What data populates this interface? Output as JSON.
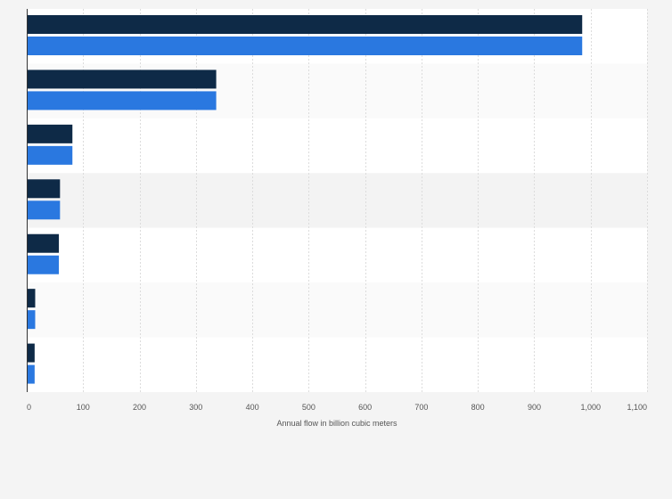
{
  "chart_data": {
    "type": "bar",
    "orientation": "horizontal",
    "xlabel": "Annual flow in billion cubic meters",
    "xlim": [
      0,
      1100
    ],
    "xticks": [
      0,
      100,
      200,
      300,
      400,
      500,
      600,
      700,
      800,
      900,
      1000,
      1100
    ],
    "xtick_labels": [
      "0",
      "100",
      "200",
      "300",
      "400",
      "500",
      "600",
      "700",
      "800",
      "900",
      "1,000",
      "1,100"
    ],
    "categories": [
      "",
      "",
      "",
      "",
      "",
      "",
      ""
    ],
    "series": [
      {
        "color": "#0e2a47",
        "values": [
          985,
          336,
          81,
          59,
          57,
          15,
          14
        ]
      },
      {
        "color": "#2a78e0",
        "values": [
          985,
          336,
          81,
          59,
          57,
          15,
          14
        ]
      }
    ],
    "grid": true,
    "legend": "none"
  }
}
